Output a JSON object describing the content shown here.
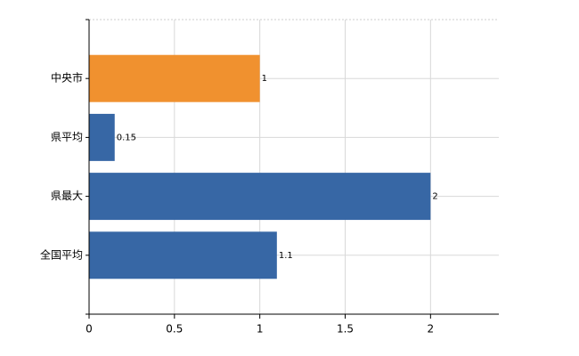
{
  "chart_data": {
    "type": "bar",
    "orientation": "horizontal",
    "categories": [
      "中央市",
      "県平均",
      "県最大",
      "全国平均"
    ],
    "values": [
      1,
      0.15,
      2,
      1.1
    ],
    "colors": [
      "#f0912f",
      "#3767a5",
      "#3767a5",
      "#3767a5"
    ],
    "xlim": [
      0,
      2.4
    ],
    "xticks": [
      0,
      0.5,
      1,
      1.5,
      2
    ],
    "grid": true
  }
}
